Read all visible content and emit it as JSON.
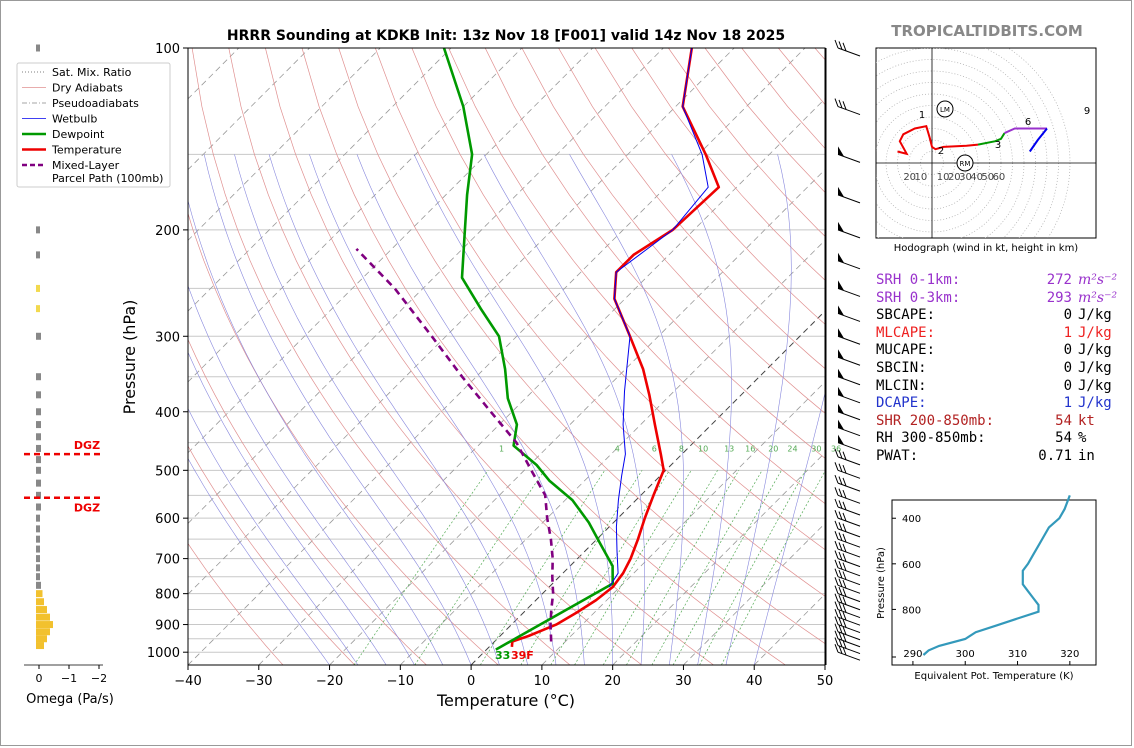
{
  "title": "HRRR Sounding at KDKB Init: 13z Nov 18 [F001] valid 14z Nov 18 2025",
  "brand": "TROPICALTIDBITS.COM",
  "skewt": {
    "xlabel": "Temperature (°C)",
    "ylabel": "Pressure (hPa)",
    "x_ticks": [
      "−40",
      "−30",
      "−20",
      "−10",
      "0",
      "10",
      "20",
      "30",
      "40",
      "50"
    ],
    "y_ticks": [
      "100",
      "200",
      "300",
      "400",
      "500",
      "600",
      "700",
      "800",
      "900",
      "1000"
    ],
    "mix_ratio_labels": [
      "1",
      "4",
      "6",
      "8",
      "10",
      "13",
      "16",
      "20",
      "24",
      "30",
      "36"
    ],
    "surface_temp_label": "39F",
    "surface_dew_label": "33"
  },
  "legend": {
    "items": [
      {
        "label": "Sat. Mix. Ratio",
        "color": "#555555",
        "style": "dotted"
      },
      {
        "label": "Dry Adiabats",
        "color": "#e09090",
        "style": "solid"
      },
      {
        "label": "Pseudoadiabats",
        "color": "#888888",
        "style": "dashdot"
      },
      {
        "label": "Wetbulb",
        "color": "#0000ee",
        "style": "solid"
      },
      {
        "label": "Dewpoint",
        "color": "#009900",
        "style": "solid"
      },
      {
        "label": "Temperature",
        "color": "#ee0000",
        "style": "solid"
      },
      {
        "label": "Mixed-Layer",
        "color": "#800080",
        "style": "dashed"
      }
    ],
    "last_label_line2": "Parcel Path (100mb)"
  },
  "omega": {
    "xlabel": "Omega (Pa/s)",
    "ticks": [
      "0",
      "−1",
      "−2"
    ],
    "dgz_label": "DGZ"
  },
  "hodograph": {
    "xlabel": "Hodograph (wind in kt, height in km)",
    "ring_labels": [
      "20",
      "10",
      "10",
      "20",
      "30",
      "40",
      "50",
      "60"
    ],
    "height_labels": [
      "1",
      "2",
      "3",
      "6",
      "9"
    ],
    "lm_label": "LM",
    "rm_label": "RM"
  },
  "theta_e": {
    "xlabel": "Equivalent Pot. Temperature (K)",
    "ylabel": "Pressure (hPa)",
    "x_ticks": [
      "290",
      "300",
      "310",
      "320"
    ],
    "y_ticks": [
      "400",
      "600",
      "800"
    ]
  },
  "stats": [
    {
      "label": "SRH 0-1km:",
      "value": "272",
      "unit": "m²s⁻²",
      "color": "#9932cc"
    },
    {
      "label": "SRH 0-3km:",
      "value": "293",
      "unit": "m²s⁻²",
      "color": "#9932cc"
    },
    {
      "label": "SBCAPE:",
      "value": "0",
      "unit": "J/kg",
      "color": "#000000"
    },
    {
      "label": "MLCAPE:",
      "value": "1",
      "unit": "J/kg",
      "color": "#ee2020"
    },
    {
      "label": "MUCAPE:",
      "value": "0",
      "unit": "J/kg",
      "color": "#000000"
    },
    {
      "label": "SBCIN:",
      "value": "0",
      "unit": "J/kg",
      "color": "#000000"
    },
    {
      "label": "MLCIN:",
      "value": "0",
      "unit": "J/kg",
      "color": "#000000"
    },
    {
      "label": "DCAPE:",
      "value": "1",
      "unit": "J/kg",
      "color": "#2233cc"
    },
    {
      "label": "SHR 200-850mb:",
      "value": "54",
      "unit": "kt",
      "color": "#b22222"
    },
    {
      "label": "RH 300-850mb:",
      "value": "54",
      "unit": "%",
      "color": "#000000"
    },
    {
      "label": "PWAT:",
      "value": "0.71",
      "unit": "in",
      "color": "#000000"
    }
  ],
  "chart_data": [
    {
      "type": "line",
      "title": "HRRR Sounding at KDKB Init: 13z Nov 18 [F001] valid 14z Nov 18 2025",
      "xlabel": "Temperature (°C)",
      "ylabel": "Pressure (hPa)",
      "xlim": [
        -40,
        50
      ],
      "ylim": [
        1050,
        100
      ],
      "y_scale": "log",
      "skew": "skew-T log-p",
      "grid": true,
      "legend_position": "outside top-left",
      "series": [
        {
          "name": "Temperature",
          "color": "#ee0000",
          "points": [
            [
              3.2,
              980
            ],
            [
              2.5,
              960
            ],
            [
              4.0,
              940
            ],
            [
              6.3,
              900
            ],
            [
              7.5,
              860
            ],
            [
              8.5,
              820
            ],
            [
              9.0,
              780
            ],
            [
              8.5,
              740
            ],
            [
              7.5,
              700
            ],
            [
              5.8,
              650
            ],
            [
              3.8,
              600
            ],
            [
              1.8,
              550
            ],
            [
              -0.3,
              500
            ],
            [
              -3.0,
              470
            ],
            [
              -8.0,
              420
            ],
            [
              -13.0,
              375
            ],
            [
              -17.5,
              340
            ],
            [
              -24.0,
              300
            ],
            [
              -31.5,
              260
            ],
            [
              -35.0,
              235
            ],
            [
              -35.0,
              220
            ],
            [
              -33.0,
              200
            ],
            [
              -32.5,
              170
            ],
            [
              -39.0,
              150
            ],
            [
              -49.0,
              125
            ],
            [
              -56.0,
              100
            ]
          ]
        },
        {
          "name": "Dewpoint",
          "color": "#009900",
          "points": [
            [
              1.3,
              990
            ],
            [
              8.5,
              770
            ],
            [
              6.0,
              720
            ],
            [
              1.0,
              660
            ],
            [
              -3.5,
              610
            ],
            [
              -9.0,
              560
            ],
            [
              -15.0,
              520
            ],
            [
              -19.0,
              490
            ],
            [
              -25.0,
              455
            ],
            [
              -27.5,
              420
            ],
            [
              -32.5,
              380
            ],
            [
              -37.0,
              340
            ],
            [
              -42.5,
              300
            ],
            [
              -49.0,
              270
            ],
            [
              -56.0,
              240
            ],
            [
              -61.5,
              205
            ],
            [
              -67.0,
              175
            ],
            [
              -72.0,
              150
            ],
            [
              -80.0,
              125
            ],
            [
              -91.0,
              100
            ]
          ]
        },
        {
          "name": "Wetbulb",
          "color": "#0000ee",
          "points": [
            [
              8.5,
              780
            ],
            [
              7.8,
              740
            ],
            [
              4.5,
              680
            ],
            [
              1.0,
              620
            ],
            [
              -2.5,
              560
            ],
            [
              -5.5,
              510
            ],
            [
              -8.0,
              470
            ],
            [
              -12.5,
              420
            ],
            [
              -17.0,
              370
            ],
            [
              -24.0,
              300
            ],
            [
              -31.5,
              260
            ],
            [
              -35.0,
              235
            ],
            [
              -33.0,
              200
            ],
            [
              -34.0,
              170
            ],
            [
              -39.5,
              150
            ],
            [
              -49.0,
              125
            ],
            [
              -56.0,
              100
            ]
          ]
        },
        {
          "name": "Mixed-Layer Parcel Path (100mb)",
          "color": "#800080",
          "points": [
            [
              8.0,
              960
            ],
            [
              5.5,
              900
            ],
            [
              3.5,
              850
            ],
            [
              1.5,
              800
            ],
            [
              -1.0,
              750
            ],
            [
              -3.5,
              700
            ],
            [
              -6.5,
              650
            ],
            [
              -10.0,
              600
            ],
            [
              -13.5,
              550
            ],
            [
              -19.0,
              500
            ],
            [
              -25.0,
              450
            ],
            [
              -33.0,
              400
            ],
            [
              -42.0,
              350
            ],
            [
              -52.0,
              300
            ],
            [
              -64.0,
              250
            ],
            [
              -75.0,
              215
            ]
          ]
        }
      ]
    },
    {
      "type": "bar",
      "title": "",
      "xlabel": "Omega (Pa/s)",
      "xlim": [
        0.1,
        -2.7
      ],
      "note_values": "omega vs pressure",
      "pressure": [
        100,
        200,
        220,
        250,
        270,
        300,
        350,
        375,
        400,
        420,
        440,
        460,
        480,
        500,
        525,
        550,
        575,
        600,
        625,
        650,
        675,
        700,
        725,
        750,
        775,
        800,
        825,
        850,
        875,
        900,
        925,
        950,
        975
      ],
      "values": [
        0,
        0,
        0,
        -0.05,
        -0.05,
        -0.1,
        -0.1,
        -0.1,
        -0.1,
        -0.1,
        -0.1,
        -0.1,
        -0.1,
        -0.1,
        -0.1,
        -0.1,
        -0.1,
        -0.05,
        -0.05,
        -0.05,
        0,
        0,
        0,
        0,
        -0.1,
        -0.15,
        -0.2,
        -0.3,
        -0.4,
        -0.5,
        -0.4,
        -0.3,
        -0.2
      ],
      "dgz": [
        470,
        555
      ]
    },
    {
      "type": "line",
      "title": "",
      "xlabel": "Hodograph (wind in kt, height in km)",
      "series": [
        {
          "name": "0-3 km",
          "color": "#ee0000",
          "u": [
            -30,
            -22,
            -28,
            -25,
            -15,
            -5,
            -2,
            0,
            3,
            10,
            30,
            40
          ],
          "v": [
            10,
            8,
            19,
            25,
            30,
            32,
            22,
            14,
            12,
            14,
            15,
            16
          ]
        },
        {
          "name": "3-6 km",
          "color": "#009900",
          "u": [
            40,
            55,
            60,
            63
          ],
          "v": [
            16,
            19,
            21,
            26
          ]
        },
        {
          "name": "6-9 km",
          "color": "#9932cc",
          "u": [
            63,
            72,
            85,
            100
          ],
          "v": [
            26,
            30,
            30,
            30
          ]
        },
        {
          "name": "9+ km",
          "color": "#0000ee",
          "u": [
            100,
            92,
            85
          ],
          "v": [
            30,
            20,
            10
          ]
        }
      ]
    },
    {
      "type": "line",
      "title": "",
      "xlabel": "Equivalent Pot. Temperature (K)",
      "ylabel": "Pressure (hPa)",
      "xlim": [
        286,
        325
      ],
      "ylim": [
        1000,
        300
      ],
      "series": [
        {
          "name": "theta-e",
          "color": "#3399bb",
          "theta": [
            292,
            293,
            295,
            300,
            302,
            306,
            310,
            314,
            314,
            313,
            312,
            311,
            311,
            311,
            312,
            313,
            314,
            315,
            316,
            318,
            319,
            320
          ],
          "pressure": [
            1000,
            980,
            960,
            930,
            900,
            870,
            840,
            810,
            780,
            750,
            720,
            690,
            660,
            630,
            600,
            560,
            520,
            480,
            440,
            400,
            360,
            300
          ]
        }
      ]
    }
  ]
}
